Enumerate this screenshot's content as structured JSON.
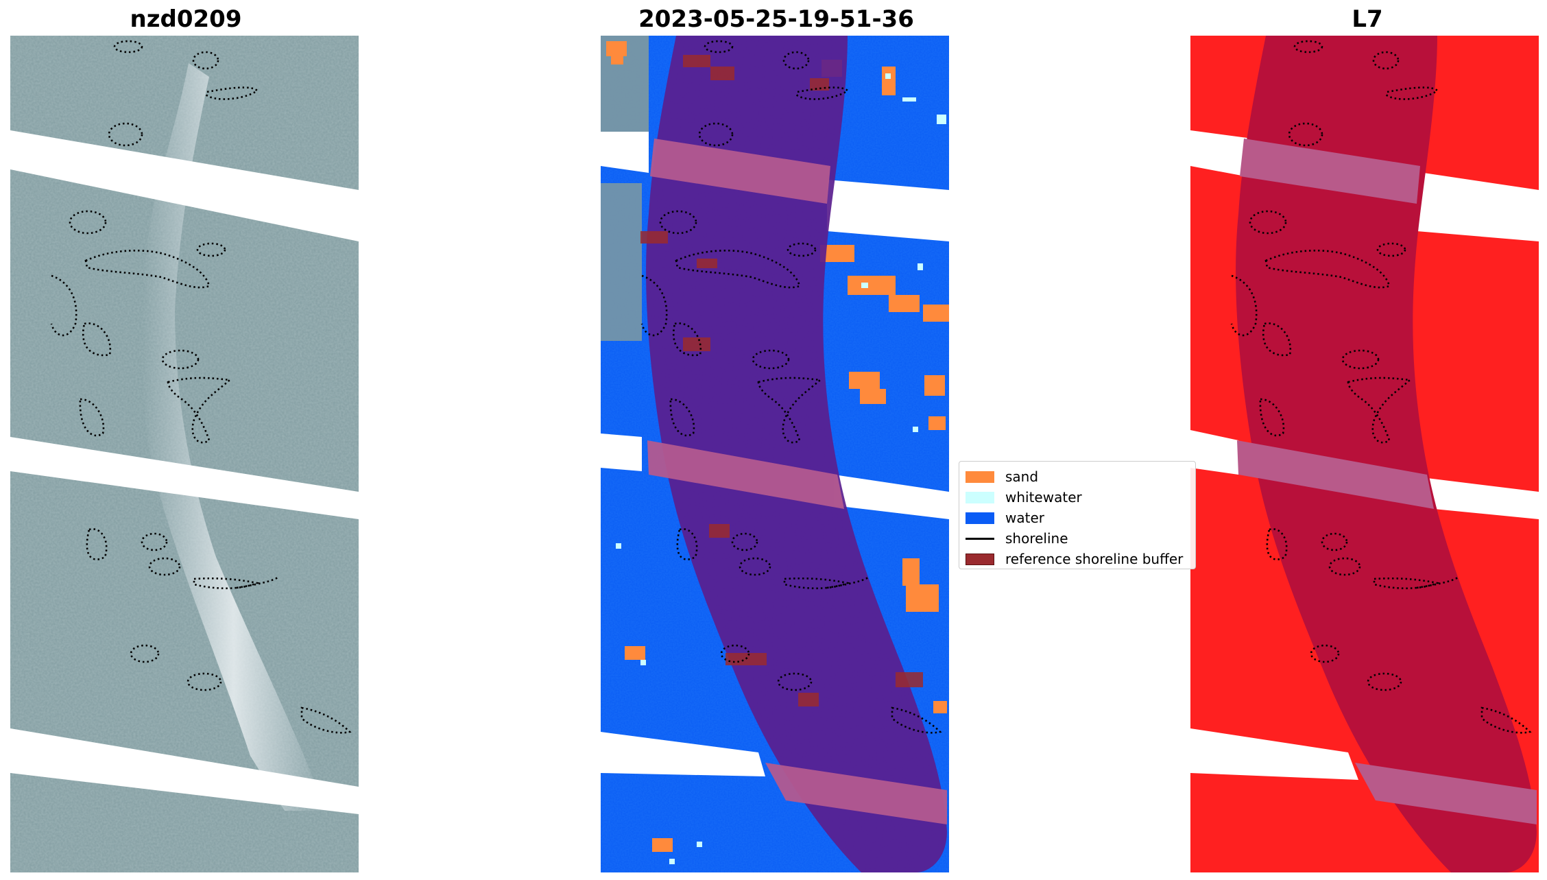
{
  "panels": [
    {
      "title": "nzd0209"
    },
    {
      "title": "2023-05-25-19-51-36"
    },
    {
      "title": "L7"
    }
  ],
  "legend": {
    "items": [
      {
        "label": "sand",
        "color": "#ff8a3c",
        "kind": "patch"
      },
      {
        "label": "whitewater",
        "color": "#ccffff",
        "kind": "patch"
      },
      {
        "label": "water",
        "color": "#0a5cf5",
        "kind": "patch"
      },
      {
        "label": "shoreline",
        "color": "#000000",
        "kind": "line"
      },
      {
        "label": "reference shoreline buffer",
        "color": "#9a2a2e",
        "kind": "patch"
      }
    ]
  },
  "colors": {
    "imagery_base": "#7f9aa0",
    "imagery_bright": "#e8eef2",
    "water": "#0a5cf5",
    "sand": "#ff8a3c",
    "whitewater": "#ccffff",
    "buffer_overlay": "#5a1e8e",
    "nodata_band": "#b35a8f",
    "l7_red": "#ff2020",
    "l7_buffer": "#b8103a",
    "l7_band": "#b85a8a"
  }
}
